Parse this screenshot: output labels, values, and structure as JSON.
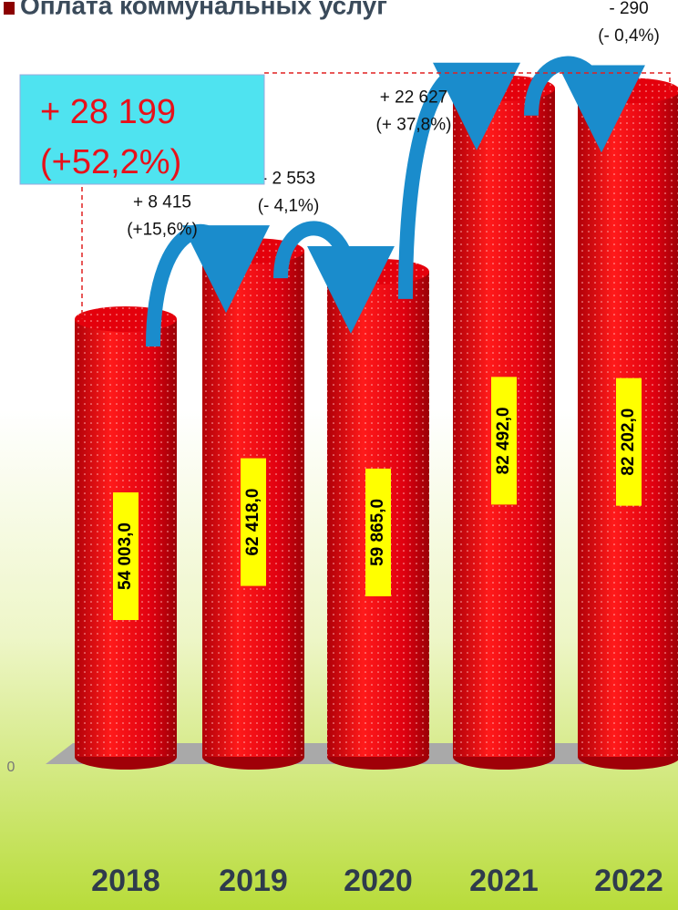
{
  "chart_data": {
    "type": "bar",
    "title": "Оплата коммунальных услуг",
    "categories": [
      "2018",
      "2019",
      "2020",
      "2021",
      "2022"
    ],
    "values": [
      54003.0,
      62418.0,
      59865.0,
      82492.0,
      82202.0
    ],
    "value_labels": [
      "54 003,0",
      "62 418,0",
      "59 865,0",
      "82 492,0",
      "82 202,0"
    ],
    "color": "#e8000b",
    "ylim": [
      0,
      90000
    ],
    "yticks": [
      0
    ],
    "changes": [
      {
        "amount": "+ 8 415",
        "percent": "(+15,6%)"
      },
      {
        "amount": "- 2 553",
        "percent": "(- 4,1%)"
      },
      {
        "amount": "+ 22 627",
        "percent": "(+ 37,8%)"
      },
      {
        "amount": "- 290",
        "percent": "(- 0,4%)"
      }
    ],
    "total_change": {
      "amount": "+ 28 199",
      "percent": "(+52,2%)"
    }
  }
}
